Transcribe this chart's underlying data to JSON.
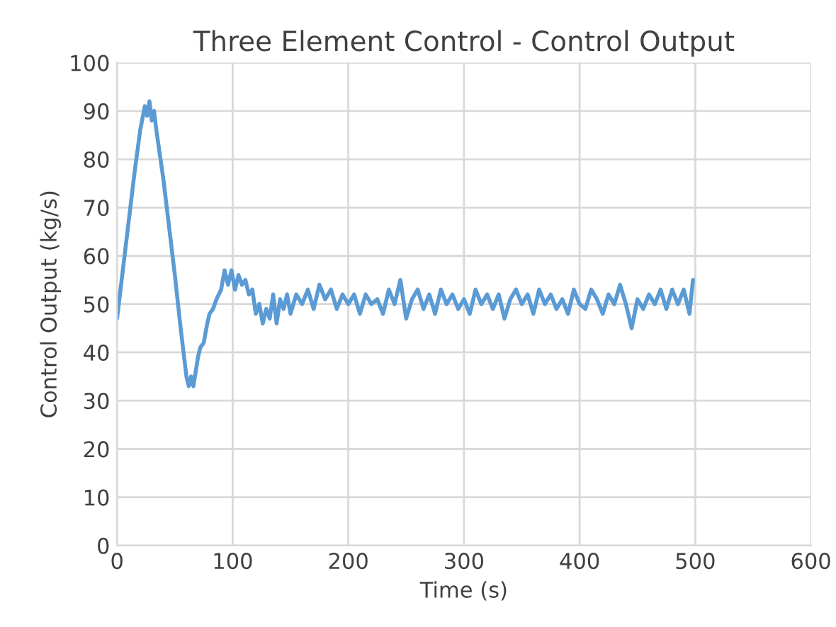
{
  "chart_data": {
    "type": "line",
    "title": "Three Element Control - Control Output",
    "xlabel": "Time (s)",
    "ylabel": "Control Output (kg/s)",
    "xlim": [
      0,
      600
    ],
    "xticks": [
      0,
      100,
      200,
      300,
      400,
      500,
      600
    ],
    "ylim": [
      0,
      100
    ],
    "yticks": [
      0,
      10,
      20,
      30,
      40,
      50,
      60,
      70,
      80,
      90,
      100
    ],
    "grid": true,
    "line_style": "solid",
    "series": [
      {
        "color": "#5b9bd5",
        "x": [
          0,
          5,
          10,
          15,
          20,
          24,
          26,
          28,
          30,
          32,
          34,
          40,
          45,
          50,
          55,
          60,
          62,
          64,
          66,
          68,
          70,
          72,
          75,
          78,
          80,
          83,
          86,
          90,
          93,
          96,
          99,
          102,
          105,
          108,
          111,
          114,
          117,
          120,
          123,
          126,
          129,
          132,
          135,
          138,
          141,
          144,
          147,
          150,
          155,
          160,
          165,
          170,
          175,
          180,
          185,
          190,
          195,
          200,
          205,
          210,
          215,
          220,
          225,
          230,
          235,
          240,
          245,
          250,
          255,
          260,
          265,
          270,
          275,
          280,
          285,
          290,
          295,
          300,
          305,
          310,
          315,
          320,
          325,
          330,
          335,
          340,
          345,
          350,
          355,
          360,
          365,
          370,
          375,
          380,
          385,
          390,
          395,
          400,
          405,
          410,
          415,
          420,
          425,
          430,
          435,
          440,
          445,
          450,
          455,
          460,
          465,
          470,
          475,
          480,
          485,
          490,
          495,
          498
        ],
        "values": [
          47,
          57,
          67,
          77,
          86,
          91,
          89,
          92,
          88,
          90,
          86,
          76,
          66,
          56,
          45,
          35,
          33,
          35,
          33,
          36,
          39,
          41,
          42,
          46,
          48,
          49,
          51,
          53,
          57,
          54,
          57,
          53,
          56,
          54,
          55,
          52,
          53,
          48,
          50,
          46,
          49,
          47,
          52,
          46,
          51,
          49,
          52,
          48,
          52,
          50,
          53,
          49,
          54,
          51,
          53,
          49,
          52,
          50,
          52,
          48,
          52,
          50,
          51,
          48,
          53,
          50,
          55,
          47,
          51,
          53,
          49,
          52,
          48,
          53,
          50,
          52,
          49,
          51,
          48,
          53,
          50,
          52,
          49,
          52,
          47,
          51,
          53,
          50,
          52,
          48,
          53,
          50,
          52,
          49,
          51,
          48,
          53,
          50,
          49,
          53,
          51,
          48,
          52,
          50,
          54,
          50,
          45,
          51,
          49,
          52,
          50,
          53,
          49,
          53,
          50,
          53,
          48,
          55
        ]
      }
    ]
  }
}
